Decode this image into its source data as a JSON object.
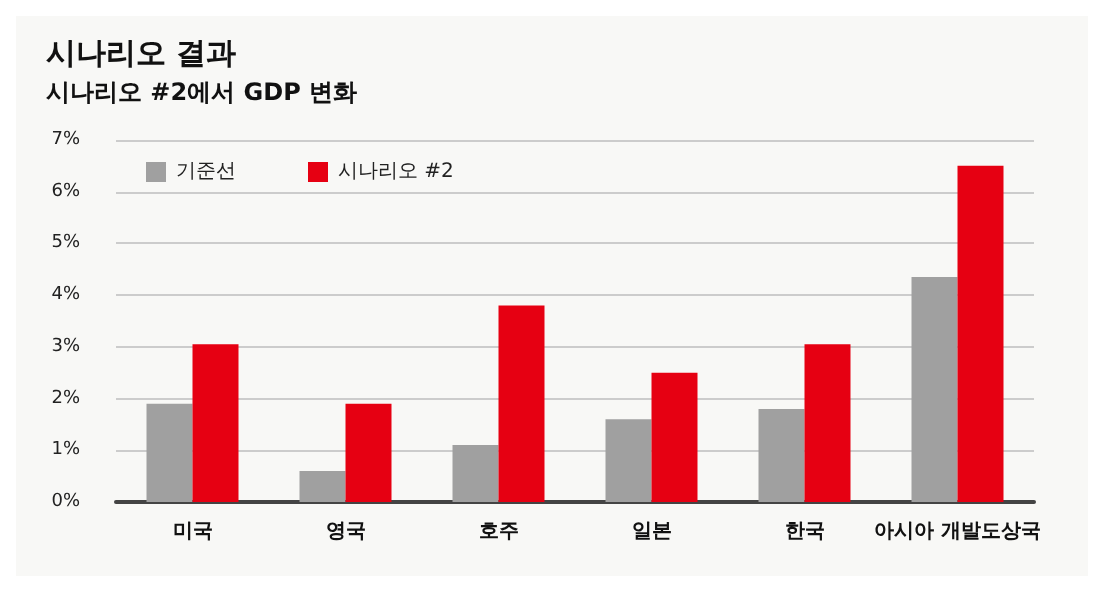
{
  "chart_data": {
    "type": "bar",
    "title": "시나리오 결과",
    "subtitle": "시나리오 #2에서 GDP 변화",
    "categories": [
      "미국",
      "영국",
      "호주",
      "일본",
      "한국",
      "아시아 개발도상국"
    ],
    "series": [
      {
        "name": "기준선",
        "color": "#a0a0a0",
        "values": [
          1.9,
          0.6,
          1.1,
          1.6,
          1.8,
          4.35
        ]
      },
      {
        "name": "시나리오 #2",
        "color": "#e60012",
        "values": [
          3.05,
          1.9,
          3.8,
          2.5,
          3.05,
          6.5
        ]
      }
    ],
    "ylim": [
      0,
      7
    ],
    "yticks": [
      {
        "value": 0,
        "label": "0%"
      },
      {
        "value": 1,
        "label": "1%"
      },
      {
        "value": 2,
        "label": "2%"
      },
      {
        "value": 3,
        "label": "3%"
      },
      {
        "value": 4,
        "label": "4%"
      },
      {
        "value": 5,
        "label": "5%"
      },
      {
        "value": 6,
        "label": "6%"
      },
      {
        "value": 7,
        "label": "7%"
      }
    ],
    "grid": "y",
    "legend": "top left"
  }
}
